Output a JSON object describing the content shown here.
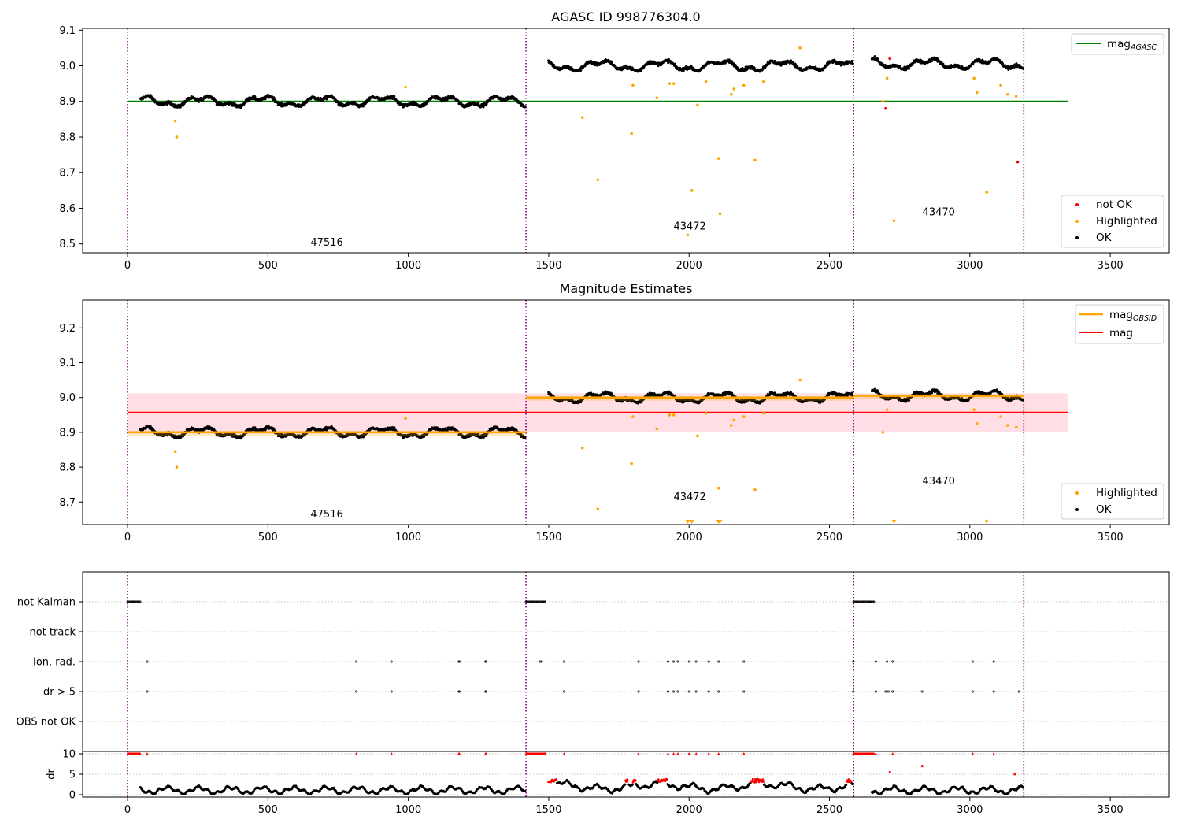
{
  "colors": {
    "ok": "#000000",
    "highlighted": "#FFA500",
    "not_ok": "#FF0000",
    "mag_agasc": "#008000",
    "mag_obsid": "#FFA500",
    "mag": "#FF0000",
    "mag_band": "#FFC0CB",
    "obs_divider": "#800080",
    "grid": "#b0b0b0"
  },
  "observations": [
    {
      "obsid": "47516",
      "start": 0,
      "end": 1419,
      "mean_mag": 8.9,
      "label_mag_top": 8.495,
      "label_mag_mid": 8.655
    },
    {
      "obsid": "43472",
      "start": 1419,
      "end": 2586,
      "mean_mag": 9.0,
      "label_mag_top": 8.54,
      "label_mag_mid": 8.705
    },
    {
      "obsid": "43470",
      "start": 2586,
      "end": 3192,
      "mean_mag": 9.005,
      "label_mag_top": 8.58,
      "label_mag_mid": 8.75
    }
  ],
  "chart_data": [
    {
      "type": "scatter",
      "title": "AGASC ID 998776304.0",
      "xlabel": "",
      "ylabel": "",
      "xlim": [
        -160,
        3710
      ],
      "ylim": [
        8.475,
        9.105
      ],
      "xticks": [
        "0",
        "500",
        "1000",
        "1500",
        "2000",
        "2500",
        "3000",
        "3500"
      ],
      "yticks": [
        "8.5",
        "8.6",
        "8.7",
        "8.8",
        "8.9",
        "9.0",
        "9.1"
      ],
      "reference_lines": [
        {
          "name": "mag_AGASC",
          "value": 8.9,
          "x_range": [
            0,
            3350
          ]
        }
      ],
      "legend": {
        "lines": [
          {
            "label": "mag",
            "subscript": "AGASC",
            "color": "#008000"
          }
        ],
        "points": [
          {
            "label": "not OK",
            "color": "#FF0000"
          },
          {
            "label": "Highlighted",
            "color": "#FFA500"
          },
          {
            "label": "OK",
            "color": "#000000"
          }
        ]
      },
      "highlighted": [
        [
          170,
          8.845
        ],
        [
          175,
          8.8
        ],
        [
          990,
          8.94
        ],
        [
          1620,
          8.855
        ],
        [
          1675,
          8.68
        ],
        [
          1795,
          8.81
        ],
        [
          1800,
          8.945
        ],
        [
          1885,
          8.91
        ],
        [
          1930,
          8.95
        ],
        [
          1945,
          8.95
        ],
        [
          1995,
          8.525
        ],
        [
          2010,
          8.65
        ],
        [
          2030,
          8.89
        ],
        [
          2060,
          8.955
        ],
        [
          2105,
          8.74
        ],
        [
          2110,
          8.585
        ],
        [
          2150,
          8.92
        ],
        [
          2160,
          8.935
        ],
        [
          2195,
          8.945
        ],
        [
          2235,
          8.735
        ],
        [
          2265,
          8.955
        ],
        [
          2395,
          9.05
        ],
        [
          2690,
          8.9
        ],
        [
          2705,
          8.965
        ],
        [
          2730,
          8.565
        ],
        [
          3015,
          8.965
        ],
        [
          3025,
          8.925
        ],
        [
          3060,
          8.645
        ],
        [
          3110,
          8.945
        ],
        [
          3135,
          8.92
        ],
        [
          3165,
          8.915
        ]
      ],
      "not_ok": [
        [
          2700,
          8.88
        ],
        [
          3170,
          8.73
        ],
        [
          2715,
          9.02
        ]
      ]
    },
    {
      "type": "scatter",
      "title": "Magnitude Estimates",
      "xlabel": "",
      "ylabel": "",
      "xlim": [
        -160,
        3710
      ],
      "ylim": [
        8.635,
        9.28
      ],
      "xticks": [
        "0",
        "500",
        "1000",
        "1500",
        "2000",
        "2500",
        "3000",
        "3500"
      ],
      "yticks": [
        "8.7",
        "8.8",
        "8.9",
        "9.0",
        "9.1",
        "9.2"
      ],
      "reference_lines": [
        {
          "name": "mag",
          "value": 8.957,
          "band": [
            8.9,
            9.012
          ],
          "x_range": [
            0,
            3350
          ]
        }
      ],
      "legend": {
        "lines": [
          {
            "label": "mag",
            "subscript": "OBSID",
            "color": "#FFA500"
          },
          {
            "label": "mag",
            "subscript": "",
            "color": "#FF0000"
          }
        ],
        "points": [
          {
            "label": "Highlighted",
            "color": "#FFA500"
          },
          {
            "label": "OK",
            "color": "#000000"
          }
        ]
      },
      "highlighted": [
        [
          170,
          8.845
        ],
        [
          175,
          8.8
        ],
        [
          990,
          8.94
        ],
        [
          1620,
          8.855
        ],
        [
          1675,
          8.68
        ],
        [
          1795,
          8.81
        ],
        [
          1800,
          8.945
        ],
        [
          1885,
          8.91
        ],
        [
          1930,
          8.95
        ],
        [
          1945,
          8.95
        ],
        [
          2030,
          8.89
        ],
        [
          2060,
          8.955
        ],
        [
          2105,
          8.74
        ],
        [
          2150,
          8.92
        ],
        [
          2160,
          8.935
        ],
        [
          2195,
          8.945
        ],
        [
          2235,
          8.735
        ],
        [
          2265,
          8.955
        ],
        [
          2395,
          9.05
        ],
        [
          2690,
          8.9
        ],
        [
          2705,
          8.965
        ],
        [
          3015,
          8.965
        ],
        [
          3025,
          8.925
        ],
        [
          3060,
          8.645
        ],
        [
          3110,
          8.945
        ],
        [
          3135,
          8.92
        ],
        [
          3165,
          8.915
        ]
      ],
      "below_range_markers": [
        1995,
        2010,
        2105,
        2110,
        2730
      ]
    },
    {
      "type": "scatter",
      "title": "",
      "xlabel": "",
      "ylabel": "dr",
      "xlim": [
        -160,
        3710
      ],
      "xticks": [
        "0",
        "500",
        "1000",
        "1500",
        "2000",
        "2500",
        "3000",
        "3500"
      ],
      "flag_rows": [
        "not Kalman",
        "not track",
        "Ion. rad.",
        "dr > 5",
        "OBS not OK"
      ],
      "flag_events": {
        "not Kalman": [
          [
            0,
            45
          ],
          [
            1419,
            1490
          ],
          [
            2586,
            2660
          ]
        ],
        "not track": [],
        "Ion. rad.": [
          70,
          815,
          940,
          1180,
          1182,
          1275,
          1277,
          1470,
          1475,
          1555,
          1820,
          1925,
          1945,
          1960,
          2000,
          2025,
          2070,
          2105,
          2195,
          2585,
          2665,
          2705,
          2725,
          3010,
          3085
        ],
        "dr > 5": [
          70,
          815,
          940,
          1180,
          1182,
          1275,
          1277,
          1555,
          1820,
          1925,
          1945,
          1960,
          2000,
          2025,
          2070,
          2105,
          2195,
          2585,
          2665,
          2700,
          2710,
          2725,
          2830,
          3010,
          3085,
          3175
        ],
        "OBS not OK": []
      },
      "dr_ylim": [
        -0.5,
        10.5
      ],
      "dr_yticks": [
        "0",
        "5",
        "10"
      ],
      "dr_clipped_10": [
        [
          0,
          45
        ],
        [
          1419,
          1490
        ],
        [
          2586,
          2660
        ]
      ],
      "dr_clipped_points": [
        70,
        815,
        940,
        1180,
        1182,
        1275,
        1277,
        1555,
        1820,
        1925,
        1945,
        1960,
        2000,
        2025,
        2070,
        2105,
        2195,
        2585,
        2665,
        2725,
        3010,
        3085
      ]
    }
  ]
}
